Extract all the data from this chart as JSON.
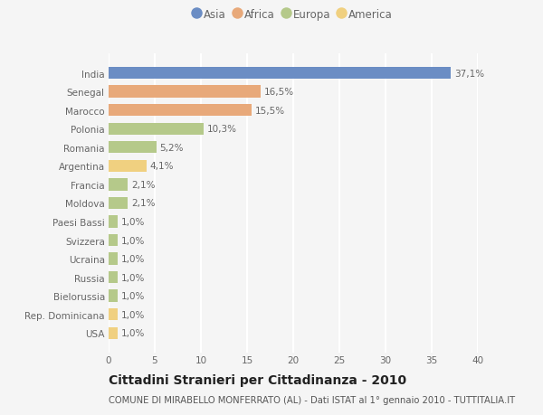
{
  "countries": [
    "India",
    "Senegal",
    "Marocco",
    "Polonia",
    "Romania",
    "Argentina",
    "Francia",
    "Moldova",
    "Paesi Bassi",
    "Svizzera",
    "Ucraina",
    "Russia",
    "Bielorussia",
    "Rep. Dominicana",
    "USA"
  ],
  "values": [
    37.1,
    16.5,
    15.5,
    10.3,
    5.2,
    4.1,
    2.1,
    2.1,
    1.0,
    1.0,
    1.0,
    1.0,
    1.0,
    1.0,
    1.0
  ],
  "labels": [
    "37,1%",
    "16,5%",
    "15,5%",
    "10,3%",
    "5,2%",
    "4,1%",
    "2,1%",
    "2,1%",
    "1,0%",
    "1,0%",
    "1,0%",
    "1,0%",
    "1,0%",
    "1,0%",
    "1,0%"
  ],
  "continents": [
    "Asia",
    "Africa",
    "Africa",
    "Europa",
    "Europa",
    "America",
    "Europa",
    "Europa",
    "Europa",
    "Europa",
    "Europa",
    "Europa",
    "Europa",
    "America",
    "America"
  ],
  "continent_colors": {
    "Asia": "#6b8dc4",
    "Africa": "#e8a97a",
    "Europa": "#b5c98a",
    "America": "#f0d080"
  },
  "legend_order": [
    "Asia",
    "Africa",
    "Europa",
    "America"
  ],
  "title1": "Cittadini Stranieri per Cittadinanza - 2010",
  "title2": "COMUNE DI MIRABELLO MONFERRATO (AL) - Dati ISTAT al 1° gennaio 2010 - TUTTITALIA.IT",
  "xlim": [
    0,
    40
  ],
  "xticks": [
    0,
    5,
    10,
    15,
    20,
    25,
    30,
    35,
    40
  ],
  "background_color": "#f5f5f5",
  "grid_color": "#ffffff",
  "bar_height": 0.65,
  "label_fontsize": 7.5,
  "tick_fontsize": 7.5,
  "title1_fontsize": 10,
  "title2_fontsize": 7.2
}
